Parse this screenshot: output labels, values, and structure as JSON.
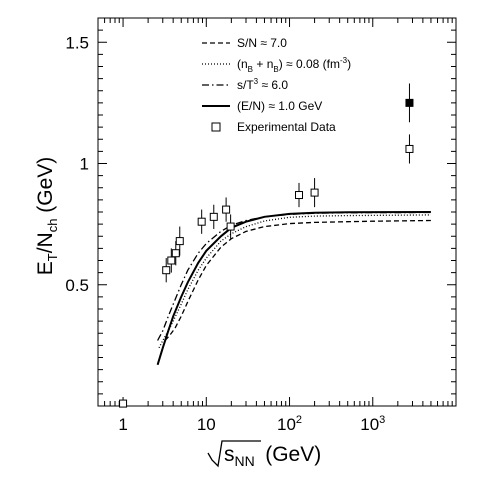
{
  "chart_data": {
    "type": "line",
    "title": "",
    "x_scale": "log",
    "xlim": [
      0.5,
      10000
    ],
    "ylim": [
      0.0,
      1.6
    ],
    "grid": false,
    "legend_position": "top-center",
    "xlabel": {
      "main": "(GeV)",
      "sqrt_term": "s",
      "subscript": "NN"
    },
    "ylabel": {
      "main": "E",
      "sub1": "T",
      "mid": "/N",
      "sub2": "ch",
      "unit": "(GeV)"
    },
    "x_ticks": [
      {
        "value": 1,
        "label": "1",
        "exp": ""
      },
      {
        "value": 10,
        "label": "10",
        "exp": ""
      },
      {
        "value": 100,
        "label": "10",
        "exp": "2"
      },
      {
        "value": 1000,
        "label": "10",
        "exp": "3"
      }
    ],
    "y_ticks": [
      {
        "value": 0.5,
        "label": "0.5"
      },
      {
        "value": 1.0,
        "label": "1"
      },
      {
        "value": 1.5,
        "label": "1.5"
      }
    ],
    "series": [
      {
        "name": "S/N ≈ 7.0",
        "style": "dashed",
        "x": [
          3.2,
          3.6,
          4.2,
          5.0,
          6.0,
          8.0,
          10.0,
          15.0,
          20.0,
          30.0,
          50.0,
          100.0,
          200.0,
          500.0,
          1000.0,
          5000.0
        ],
        "y": [
          0.27,
          0.29,
          0.32,
          0.37,
          0.43,
          0.52,
          0.58,
          0.655,
          0.69,
          0.72,
          0.74,
          0.752,
          0.757,
          0.76,
          0.762,
          0.765
        ]
      },
      {
        "name": "(n_B + n_B̄) ≈ 0.08 (fm^-3)",
        "style": "dotted",
        "x": [
          2.7,
          3.0,
          3.5,
          4.0,
          5.0,
          6.0,
          8.0,
          10.0,
          15.0,
          20.0,
          30.0,
          50.0,
          100.0,
          200.0,
          500.0,
          5000.0
        ],
        "y": [
          0.24,
          0.27,
          0.31,
          0.35,
          0.42,
          0.48,
          0.56,
          0.61,
          0.68,
          0.71,
          0.74,
          0.763,
          0.778,
          0.783,
          0.785,
          0.788
        ]
      },
      {
        "name": "s/T^3 ≈ 6.0",
        "style": "dash-dot",
        "x": [
          2.6,
          3.0,
          3.5,
          4.0,
          5.0,
          6.0,
          8.0,
          10.0,
          15.0,
          20.0,
          30.0,
          50.0,
          100.0,
          200.0,
          500.0,
          5000.0
        ],
        "y": [
          0.27,
          0.31,
          0.37,
          0.42,
          0.5,
          0.56,
          0.63,
          0.67,
          0.72,
          0.745,
          0.765,
          0.78,
          0.79,
          0.795,
          0.797,
          0.798
        ]
      },
      {
        "name": "(E/N) ≈ 1.0 GeV",
        "style": "solid",
        "x": [
          2.6,
          3.0,
          3.5,
          4.0,
          5.0,
          6.0,
          8.0,
          10.0,
          15.0,
          20.0,
          30.0,
          50.0,
          100.0,
          200.0,
          500.0,
          5000.0
        ],
        "y": [
          0.17,
          0.24,
          0.31,
          0.37,
          0.45,
          0.51,
          0.59,
          0.64,
          0.7,
          0.735,
          0.76,
          0.78,
          0.792,
          0.797,
          0.799,
          0.8
        ]
      }
    ],
    "experimental_data": {
      "name": "Experimental Data",
      "points": [
        {
          "x": 1.0,
          "y": 0.01,
          "err": 0.0,
          "filled": false
        },
        {
          "x": 3.3,
          "y": 0.56,
          "err": 0.05,
          "filled": false
        },
        {
          "x": 3.8,
          "y": 0.6,
          "err": 0.05,
          "filled": false
        },
        {
          "x": 4.3,
          "y": 0.63,
          "err": 0.05,
          "filled": false
        },
        {
          "x": 4.8,
          "y": 0.68,
          "err": 0.06,
          "filled": false
        },
        {
          "x": 8.8,
          "y": 0.76,
          "err": 0.05,
          "filled": false
        },
        {
          "x": 12.3,
          "y": 0.78,
          "err": 0.05,
          "filled": false
        },
        {
          "x": 17.3,
          "y": 0.81,
          "err": 0.05,
          "filled": false
        },
        {
          "x": 19.6,
          "y": 0.74,
          "err": 0.05,
          "filled": false
        },
        {
          "x": 130.0,
          "y": 0.87,
          "err": 0.05,
          "filled": false
        },
        {
          "x": 200.0,
          "y": 0.88,
          "err": 0.06,
          "filled": false
        },
        {
          "x": 2760.0,
          "y": 1.06,
          "err": 0.06,
          "filled": false
        },
        {
          "x": 2760.0,
          "y": 1.25,
          "err": 0.08,
          "filled": true
        }
      ]
    },
    "legend": [
      {
        "style": "dashed",
        "parts": [
          {
            "t": "S/N ≈ 7.0"
          }
        ]
      },
      {
        "style": "dotted",
        "parts": [
          {
            "t": "(n"
          },
          {
            "t": "B",
            "sub": true
          },
          {
            "t": " + n"
          },
          {
            "t": "B",
            "sub": true
          },
          {
            "t": ") ≈ 0.08 (fm"
          },
          {
            "t": "-3",
            "sup": true
          },
          {
            "t": ")"
          }
        ]
      },
      {
        "style": "dash-dot",
        "parts": [
          {
            "t": "s/T"
          },
          {
            "t": "3",
            "sup": true
          },
          {
            "t": " ≈ 6.0"
          }
        ]
      },
      {
        "style": "solid",
        "parts": [
          {
            "t": "(E/N) ≈ 1.0 GeV"
          }
        ]
      },
      {
        "style": "marker",
        "parts": [
          {
            "t": "Experimental Data"
          }
        ]
      }
    ]
  }
}
